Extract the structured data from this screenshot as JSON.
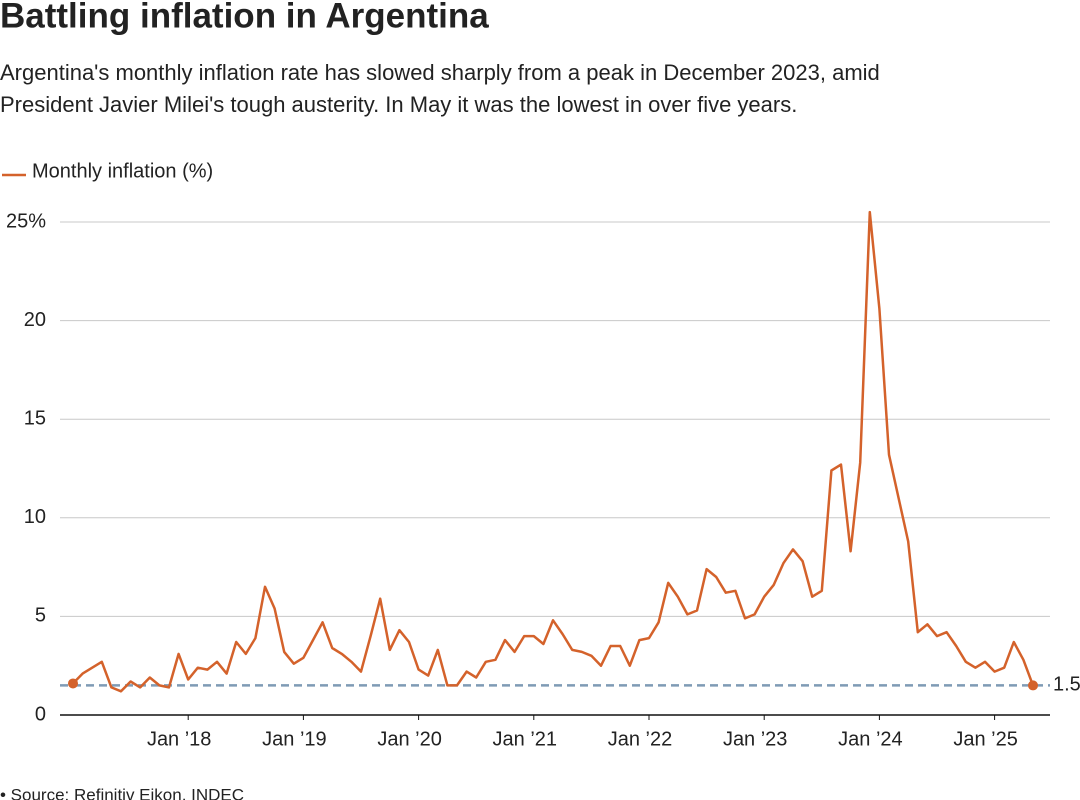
{
  "chart_data": {
    "type": "line",
    "title": "Battling inflation in Argentina",
    "subtitle": [
      "Argentina's monthly inflation rate has slowed sharply from a peak in December 2023, amid",
      "President Javier Milei's tough austerity. In May it was the lowest in over five years."
    ],
    "x": [
      "2017-01",
      "2017-02",
      "2017-03",
      "2017-04",
      "2017-05",
      "2017-06",
      "2017-07",
      "2017-08",
      "2017-09",
      "2017-10",
      "2017-11",
      "2017-12",
      "2018-01",
      "2018-02",
      "2018-03",
      "2018-04",
      "2018-05",
      "2018-06",
      "2018-07",
      "2018-08",
      "2018-09",
      "2018-10",
      "2018-11",
      "2018-12",
      "2019-01",
      "2019-02",
      "2019-03",
      "2019-04",
      "2019-05",
      "2019-06",
      "2019-07",
      "2019-08",
      "2019-09",
      "2019-10",
      "2019-11",
      "2019-12",
      "2020-01",
      "2020-02",
      "2020-03",
      "2020-04",
      "2020-05",
      "2020-06",
      "2020-07",
      "2020-08",
      "2020-09",
      "2020-10",
      "2020-11",
      "2020-12",
      "2021-01",
      "2021-02",
      "2021-03",
      "2021-04",
      "2021-05",
      "2021-06",
      "2021-07",
      "2021-08",
      "2021-09",
      "2021-10",
      "2021-11",
      "2021-12",
      "2022-01",
      "2022-02",
      "2022-03",
      "2022-04",
      "2022-05",
      "2022-06",
      "2022-07",
      "2022-08",
      "2022-09",
      "2022-10",
      "2022-11",
      "2022-12",
      "2023-01",
      "2023-02",
      "2023-03",
      "2023-04",
      "2023-05",
      "2023-06",
      "2023-07",
      "2023-08",
      "2023-09",
      "2023-10",
      "2023-11",
      "2023-12",
      "2024-01",
      "2024-02",
      "2024-03",
      "2024-04",
      "2024-05",
      "2024-06",
      "2024-07",
      "2024-08",
      "2024-09",
      "2024-10",
      "2024-11",
      "2024-12",
      "2025-01",
      "2025-02",
      "2025-03",
      "2025-04",
      "2025-05"
    ],
    "series": [
      {
        "name": "Monthly inflation (%)",
        "color": "#d4622b",
        "values": [
          1.6,
          2.1,
          2.4,
          2.7,
          1.4,
          1.2,
          1.7,
          1.4,
          1.9,
          1.5,
          1.4,
          3.1,
          1.8,
          2.4,
          2.3,
          2.7,
          2.1,
          3.7,
          3.1,
          3.9,
          6.5,
          5.4,
          3.2,
          2.6,
          2.9,
          3.8,
          4.7,
          3.4,
          3.1,
          2.7,
          2.2,
          4.0,
          5.9,
          3.3,
          4.3,
          3.7,
          2.3,
          2.0,
          3.3,
          1.5,
          1.5,
          2.2,
          1.9,
          2.7,
          2.8,
          3.8,
          3.2,
          4.0,
          4.0,
          3.6,
          4.8,
          4.1,
          3.3,
          3.2,
          3.0,
          2.5,
          3.5,
          3.5,
          2.5,
          3.8,
          3.9,
          4.7,
          6.7,
          6.0,
          5.1,
          5.3,
          7.4,
          7.0,
          6.2,
          6.3,
          4.9,
          5.1,
          6.0,
          6.6,
          7.7,
          8.4,
          7.8,
          6.0,
          6.3,
          12.4,
          12.7,
          8.3,
          12.8,
          25.5,
          20.6,
          13.2,
          11.0,
          8.8,
          4.2,
          4.6,
          4.0,
          4.2,
          3.5,
          2.7,
          2.4,
          2.7,
          2.2,
          2.4,
          3.7,
          2.8,
          1.5
        ]
      }
    ],
    "reference_line": 1.5,
    "xlim": [
      "2017-01",
      "2025-05"
    ],
    "xticks": [
      {
        "value": "2018-01",
        "label": "Jan ’18"
      },
      {
        "value": "2019-01",
        "label": "Jan ’19"
      },
      {
        "value": "2020-01",
        "label": "Jan ’20"
      },
      {
        "value": "2021-01",
        "label": "Jan ’21"
      },
      {
        "value": "2022-01",
        "label": "Jan ’22"
      },
      {
        "value": "2023-01",
        "label": "Jan ’23"
      },
      {
        "value": "2024-01",
        "label": "Jan ’24"
      },
      {
        "value": "2025-01",
        "label": "Jan ’25"
      }
    ],
    "ylim": [
      0,
      25
    ],
    "yticks": [
      0,
      5,
      10,
      15,
      20,
      {
        "value": 25,
        "label": "25%"
      }
    ],
    "grid": true,
    "source": "• Source: Refinitiv Eikon, INDEC"
  }
}
